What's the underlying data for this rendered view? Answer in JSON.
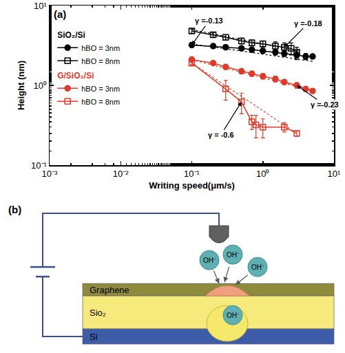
{
  "chart_data": {
    "type": "line",
    "panel_label": "(a)",
    "x_label": "Writing speed(μm/s)",
    "y_label": "Height (nm)",
    "log": true,
    "grid": false,
    "legend": "upper left",
    "xlim": [
      0.001,
      10
    ],
    "ylim": [
      0.1,
      10
    ],
    "xticks": [
      {
        "value": 0.001,
        "label": "10⁻³"
      },
      {
        "value": 0.01,
        "label": "10⁻²"
      },
      {
        "value": 0.1,
        "label": "10⁻¹"
      },
      {
        "value": 1,
        "label": "10⁰"
      },
      {
        "value": 10,
        "label": "10¹"
      }
    ],
    "yticks": [
      {
        "value": 0.1,
        "label": "10⁻¹"
      },
      {
        "value": 1,
        "label": "10⁰"
      },
      {
        "value": 10,
        "label": "10¹"
      }
    ],
    "legend_groups": [
      {
        "title": "SiO₂/Si",
        "color": "#000000"
      },
      {
        "title": "G/SiO₂/Si",
        "color": "#e03a2a"
      }
    ],
    "series": [
      {
        "name": "hBO = 3nm",
        "group": "SiO₂/Si",
        "color": "#000000",
        "marker": "circle",
        "line_style": "solid",
        "x": [
          0.1,
          0.2,
          0.3,
          0.5,
          0.7,
          1,
          1.5,
          2,
          3,
          4,
          5
        ],
        "values": [
          3.2,
          3.1,
          3.0,
          2.9,
          2.8,
          2.7,
          2.6,
          2.5,
          2.4,
          2.3,
          2.3
        ],
        "errors": [
          0.2,
          0.2,
          0.2,
          0.15,
          0.15,
          0.15,
          0.2,
          0.2,
          0.3,
          0.2,
          0.15
        ],
        "fit": {
          "x": [
            0.1,
            5
          ],
          "values": [
            3.3,
            2.0
          ],
          "line_style": "dot"
        }
      },
      {
        "name": "hBO = 8nm",
        "group": "SiO₂/Si",
        "color": "#000000",
        "marker": "square-open",
        "line_style": "solid",
        "x": [
          0.1,
          0.2,
          0.3,
          0.5,
          0.7,
          1,
          1.5,
          2,
          2.5,
          3
        ],
        "values": [
          4.8,
          4.3,
          4.0,
          3.6,
          3.4,
          3.3,
          3.1,
          3.0,
          2.9,
          2.6
        ],
        "errors": [
          0.3,
          0.3,
          0.3,
          0.3,
          0.3,
          0.3,
          0.4,
          0.4,
          0.5,
          0.4
        ],
        "fit": {
          "x": [
            0.1,
            3
          ],
          "values": [
            5.0,
            2.7
          ],
          "line_style": "dot"
        }
      },
      {
        "name": "hBO = 3nm",
        "group": "G/SiO₂/Si",
        "color": "#e03a2a",
        "marker": "circle",
        "line_style": "solid",
        "x": [
          0.1,
          0.2,
          0.3,
          0.5,
          0.7,
          1,
          1.5,
          2,
          3,
          4,
          5
        ],
        "values": [
          2.1,
          1.9,
          1.7,
          1.5,
          1.4,
          1.3,
          1.2,
          1.1,
          1.0,
          0.9,
          0.85
        ],
        "errors": [
          0.15,
          0.1,
          0.1,
          0.1,
          0.1,
          0.1,
          0.1,
          0.08,
          0.08,
          0.06,
          0.05
        ],
        "fit": {
          "x": [
            0.1,
            5
          ],
          "values": [
            2.1,
            0.86
          ],
          "line_style": "dot"
        }
      },
      {
        "name": "hBO = 8nm",
        "group": "G/SiO₂/Si",
        "color": "#e03a2a",
        "marker": "square-open",
        "line_style": "solid",
        "x": [
          0.1,
          0.3,
          0.5,
          0.7,
          0.8,
          1,
          2,
          3
        ],
        "values": [
          1.9,
          0.9,
          0.62,
          0.35,
          0.32,
          0.3,
          0.3,
          0.25
        ],
        "errors": [
          0.1,
          0.25,
          0.18,
          0.07,
          0.1,
          0.08,
          0.04,
          0.02
        ],
        "fit": {
          "x": [
            0.1,
            3
          ],
          "values": [
            1.9,
            0.25
          ],
          "line_style": "dot"
        }
      }
    ],
    "annotations": [
      {
        "text": "γ =-0.13",
        "x": 0.1,
        "y": 3.2
      },
      {
        "text": "γ =-0.18",
        "x": 2,
        "y": 3.0
      },
      {
        "text": "γ =-0.23",
        "x": 3,
        "y": 1.0
      },
      {
        "text": "γ = -0.6",
        "x": 0.5,
        "y": 0.62
      }
    ]
  },
  "diagram": {
    "panel_label": "(b)",
    "layers": [
      "Graphene",
      "Sio₂",
      "Si"
    ],
    "ions": [
      "OH⁻",
      "OH⁻",
      "OH⁻",
      "OH⁻"
    ]
  }
}
